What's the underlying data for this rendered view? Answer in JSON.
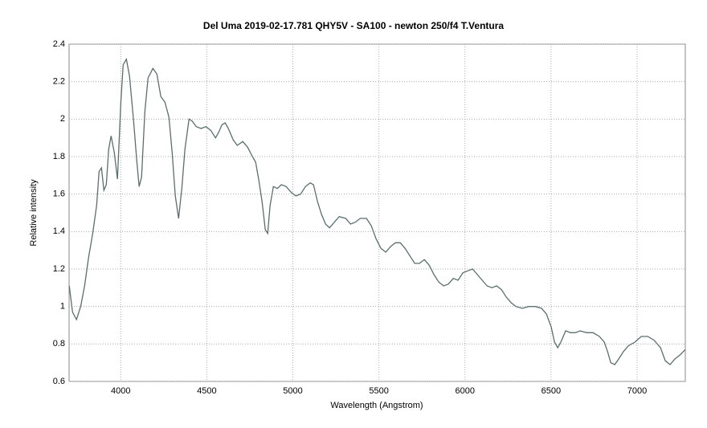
{
  "chart_data": {
    "type": "line",
    "title": "Del Uma 2019-02-17.781 QHY5V - SA100 - newton 250/f4 T.Ventura",
    "x_label": "Wavelength (Angstrom)",
    "y_label": "Relative intensity",
    "grid": true,
    "xlim": [
      3700,
      7280
    ],
    "ylim": [
      0.6,
      2.4
    ],
    "xticks": [
      4000,
      4500,
      5000,
      5500,
      6000,
      6500,
      7000
    ],
    "yticks": [
      0.6,
      0.8,
      1,
      1.2,
      1.4,
      1.6,
      1.8,
      2,
      2.2,
      2.4
    ],
    "series": [
      {
        "color": "#5a6e6e",
        "x": [
          3701,
          3720,
          3743,
          3767,
          3790,
          3813,
          3837,
          3860,
          3874,
          3888,
          3902,
          3916,
          3930,
          3944,
          3963,
          3981,
          4000,
          4014,
          4033,
          4051,
          4075,
          4093,
          4107,
          4121,
          4140,
          4159,
          4187,
          4210,
          4233,
          4257,
          4280,
          4299,
          4317,
          4336,
          4355,
          4373,
          4397,
          4415,
          4439,
          4467,
          4495,
          4523,
          4551,
          4569,
          4588,
          4607,
          4625,
          4653,
          4677,
          4709,
          4737,
          4765,
          4784,
          4803,
          4821,
          4840,
          4854,
          4868,
          4887,
          4910,
          4933,
          4961,
          4989,
          5017,
          5045,
          5073,
          5101,
          5120,
          5143,
          5167,
          5190,
          5213,
          5241,
          5269,
          5307,
          5335,
          5363,
          5391,
          5428,
          5456,
          5484,
          5512,
          5540,
          5568,
          5596,
          5624,
          5652,
          5680,
          5708,
          5736,
          5764,
          5792,
          5820,
          5848,
          5876,
          5904,
          5932,
          5960,
          5988,
          6016,
          6044,
          6072,
          6100,
          6128,
          6156,
          6184,
          6212,
          6240,
          6268,
          6296,
          6333,
          6371,
          6408,
          6445,
          6473,
          6501,
          6520,
          6539,
          6557,
          6585,
          6613,
          6641,
          6669,
          6707,
          6744,
          6781,
          6809,
          6828,
          6847,
          6870,
          6893,
          6921,
          6949,
          6987,
          7024,
          7062,
          7099,
          7136,
          7164,
          7192,
          7220,
          7248,
          7280
        ],
        "values": [
          1.11,
          0.97,
          0.93,
          1.0,
          1.11,
          1.26,
          1.39,
          1.54,
          1.72,
          1.74,
          1.62,
          1.65,
          1.84,
          1.91,
          1.82,
          1.68,
          2.08,
          2.29,
          2.32,
          2.23,
          1.99,
          1.78,
          1.64,
          1.69,
          2.04,
          2.22,
          2.27,
          2.24,
          2.12,
          2.09,
          2.01,
          1.82,
          1.59,
          1.47,
          1.63,
          1.84,
          2.0,
          1.99,
          1.96,
          1.95,
          1.96,
          1.94,
          1.9,
          1.93,
          1.97,
          1.98,
          1.95,
          1.89,
          1.86,
          1.88,
          1.85,
          1.8,
          1.77,
          1.67,
          1.56,
          1.41,
          1.39,
          1.54,
          1.64,
          1.63,
          1.65,
          1.64,
          1.61,
          1.59,
          1.6,
          1.64,
          1.66,
          1.65,
          1.56,
          1.49,
          1.44,
          1.42,
          1.45,
          1.48,
          1.47,
          1.44,
          1.45,
          1.47,
          1.47,
          1.43,
          1.36,
          1.31,
          1.29,
          1.32,
          1.34,
          1.34,
          1.31,
          1.27,
          1.23,
          1.23,
          1.25,
          1.22,
          1.17,
          1.13,
          1.11,
          1.12,
          1.15,
          1.14,
          1.18,
          1.19,
          1.2,
          1.17,
          1.14,
          1.11,
          1.1,
          1.11,
          1.09,
          1.05,
          1.02,
          1.0,
          0.99,
          1.0,
          1.0,
          0.99,
          0.96,
          0.89,
          0.81,
          0.78,
          0.81,
          0.87,
          0.86,
          0.86,
          0.87,
          0.86,
          0.86,
          0.84,
          0.81,
          0.76,
          0.7,
          0.69,
          0.72,
          0.76,
          0.79,
          0.81,
          0.84,
          0.84,
          0.82,
          0.78,
          0.71,
          0.69,
          0.72,
          0.74,
          0.77
        ]
      }
    ]
  }
}
